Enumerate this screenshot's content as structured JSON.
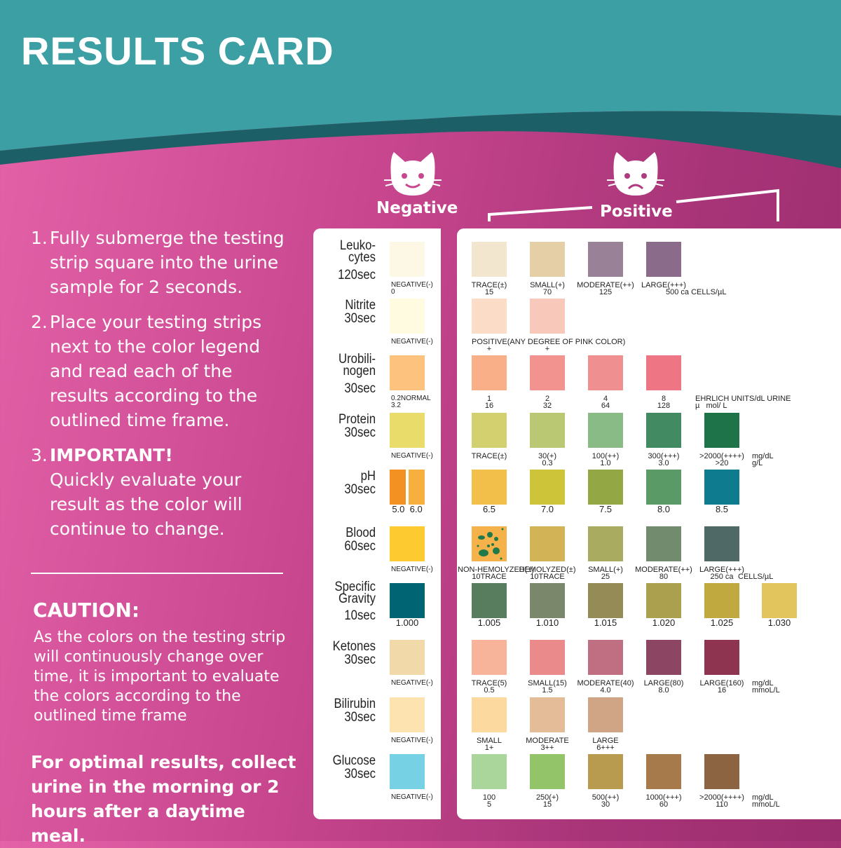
{
  "title": "RESULTS CARD",
  "colors": {
    "header_teal": "#3c9fa3",
    "header_dark": "#1d5f67",
    "pink_left": "#e462a8",
    "pink_right": "#9a2d6e"
  },
  "steps": [
    {
      "n": "1.",
      "text": "Fully submerge the testing strip square into the urine sample for 2 seconds."
    },
    {
      "n": "2.",
      "text": "Place your testing strips next to the color legend and read each of the results according to the outlined time frame."
    },
    {
      "n": "3.",
      "bold": "IMPORTANT!",
      "text": "Quickly evaluate your result as the color will continue to change."
    }
  ],
  "caution": {
    "heading": "CAUTION:",
    "text": "As the colors on the testing strip will continuously change over time, it is important to evaluate the colors according to the outlined time frame"
  },
  "optimal": "For optimal results, collect urine in the morning or 2 hours after a daytime meal.",
  "negative_label": "Negative",
  "positive_label": "Positive",
  "icons": {
    "negative": "happy-cat-icon",
    "positive": "sad-cat-icon"
  },
  "rows": [
    {
      "name": "Leuko-\ncytes",
      "time": "120sec",
      "neg": {
        "colors": [
          "#fdf8e6"
        ],
        "label": "NEGATIVE(-)\n0"
      },
      "pos": [
        {
          "color": "#f3e6cf",
          "label": "TRACE(±)\n15"
        },
        {
          "color": "#e5cfa6",
          "label": "SMALL(+)\n70"
        },
        {
          "color": "#998198",
          "label": "MODERATE(++)\n125"
        },
        {
          "color": "#8a6b8a",
          "label": "LARGE(+++)"
        }
      ],
      "unit": "\n500 ca CELLS/µL"
    },
    {
      "name": "Nitrite",
      "time": "30sec",
      "neg": {
        "colors": [
          "#fefbe0"
        ],
        "label": "NEGATIVE(-)"
      },
      "pos": [
        {
          "color": "#fbdcc6",
          "label": "\n+"
        },
        {
          "color": "#f8c9bb",
          "label": "\n+"
        }
      ],
      "note": "POSITIVE(ANY DEGREE OF PINK COLOR)"
    },
    {
      "name": "Urobili-\nnogen",
      "time": "30sec",
      "neg": {
        "colors": [
          "#fcc27e"
        ],
        "label": "0.2NORMAL\n3.2"
      },
      "pos": [
        {
          "color": "#f9af87",
          "label": "1\n16"
        },
        {
          "color": "#f29390",
          "label": "2\n32"
        },
        {
          "color": "#ef8f8f",
          "label": "4\n64"
        },
        {
          "color": "#ee7583",
          "label": "8\n128"
        }
      ],
      "unit": "EHRLICH UNITS/dL URINE\nµ   mol/ L"
    },
    {
      "name": "Protein",
      "time": "30sec",
      "neg": {
        "colors": [
          "#e9dc6a"
        ],
        "label": "NEGATIVE(-)"
      },
      "pos": [
        {
          "color": "#d3d06f",
          "label": "TRACE(±)"
        },
        {
          "color": "#bbc873",
          "label": "30(+)\n0.3"
        },
        {
          "color": "#88bb85",
          "label": "100(++)\n1.0"
        },
        {
          "color": "#418a62",
          "label": "300(+++)\n3.0"
        },
        {
          "color": "#1f7349",
          "label": ">2000(++++)\n>20"
        }
      ],
      "unit": "mg/dL\ng/L"
    },
    {
      "name": "pH",
      "time": "30sec",
      "neg": {
        "colors": [
          "#f39122",
          "#f7b03e"
        ],
        "label": "5.0  6.0"
      },
      "pos": [
        {
          "color": "#f1bf4a",
          "label": "6.5"
        },
        {
          "color": "#cdc43a",
          "label": "7.0"
        },
        {
          "color": "#93a845",
          "label": "7.5"
        },
        {
          "color": "#5a9a66",
          "label": "8.0"
        },
        {
          "color": "#0e7b8f",
          "label": "8.5"
        }
      ]
    },
    {
      "name": "Blood",
      "time": "60sec",
      "neg": {
        "colors": [
          "#fdcb2f"
        ],
        "label": "NEGATIVE(-)"
      },
      "pos": [
        {
          "color": "#f5b24a",
          "speckled": true,
          "label": "NON-HEMOLYZED(±)\n10TRACE"
        },
        {
          "color": "#d2b457",
          "label": "HEMOLYZED(±)\n10TRACE"
        },
        {
          "color": "#a8ab60",
          "label": "SMALL(+)\n25"
        },
        {
          "color": "#728a6e",
          "label": "MODERATE(++)\n80"
        },
        {
          "color": "#4f6a66",
          "label": "LARGE(+++)\n250 ca"
        }
      ],
      "unit": "\nCELLS/µL"
    },
    {
      "name": "Specific\nGravity",
      "time": "10sec",
      "neg": {
        "colors": [
          "#006472"
        ],
        "label": "1.000"
      },
      "pos": [
        {
          "color": "#577d5e",
          "label": "1.005"
        },
        {
          "color": "#7a876a",
          "label": "1.010"
        },
        {
          "color": "#958b57",
          "label": "1.015"
        },
        {
          "color": "#aaa04e",
          "label": "1.020"
        },
        {
          "color": "#c0aa3f",
          "label": "1.025"
        },
        {
          "color": "#e2c55d",
          "label": "1.030"
        }
      ]
    },
    {
      "name": "Ketones",
      "time": "30sec",
      "neg": {
        "colors": [
          "#f1d9a9"
        ],
        "label": "NEGATIVE(-)"
      },
      "pos": [
        {
          "color": "#f8b39b",
          "label": "TRACE(5)\n0.5"
        },
        {
          "color": "#ea8a8a",
          "label": "SMALL(15)\n1.5"
        },
        {
          "color": "#c06f83",
          "label": "MODERATE(40)\n4.0"
        },
        {
          "color": "#8c4563",
          "label": "LARGE(80)\n8.0"
        },
        {
          "color": "#8e3451",
          "label": "LARGE(160)\n16"
        }
      ],
      "unit": "mg/dL\nmmoL/L"
    },
    {
      "name": "Bilirubin",
      "time": "30sec",
      "neg": {
        "colors": [
          "#fde3b0"
        ],
        "label": "NEGATIVE(-)"
      },
      "pos": [
        {
          "color": "#fcd99f",
          "label": "SMALL\n1+"
        },
        {
          "color": "#e4bd98",
          "label": "MODERATE\n3++"
        },
        {
          "color": "#cfa585",
          "label": "LARGE\n6+++"
        }
      ]
    },
    {
      "name": "Glucose",
      "time": "30sec",
      "neg": {
        "colors": [
          "#76d1e4"
        ],
        "label": "NEGATIVE(-)"
      },
      "pos": [
        {
          "color": "#abd69b",
          "label": "100\n5"
        },
        {
          "color": "#94c469",
          "label": "250(+)\n15"
        },
        {
          "color": "#b89b4f",
          "label": "500(++)\n30"
        },
        {
          "color": "#a67a4a",
          "label": "1000(+++)\n60"
        },
        {
          "color": "#8c6442",
          "label": ">2000(++++)\n110"
        }
      ],
      "unit": "mg/dL\nmmoL/L"
    }
  ]
}
